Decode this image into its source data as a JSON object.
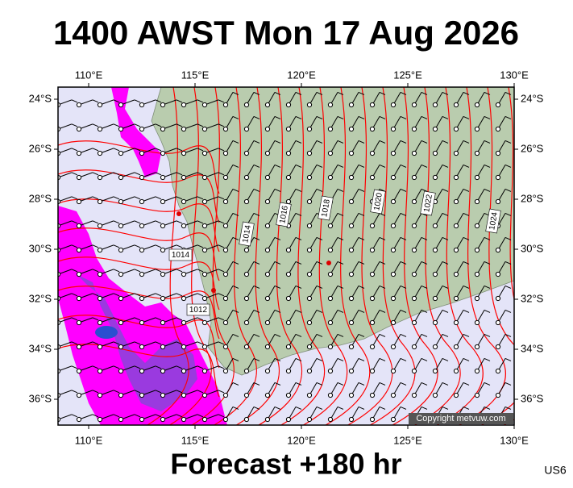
{
  "header": {
    "title": "1400 AWST Mon 17 Aug 2026"
  },
  "map": {
    "lon_ticks": [
      {
        "value": 110,
        "label": "110°E"
      },
      {
        "value": 115,
        "label": "115°E"
      },
      {
        "value": 120,
        "label": "120°E"
      },
      {
        "value": 125,
        "label": "125°E"
      },
      {
        "value": 130,
        "label": "130°E"
      }
    ],
    "lat_ticks": [
      {
        "value": 24,
        "label": "24°S"
      },
      {
        "value": 26,
        "label": "26°S"
      },
      {
        "value": 28,
        "label": "28°S"
      },
      {
        "value": 30,
        "label": "30°S"
      },
      {
        "value": 32,
        "label": "32°S"
      },
      {
        "value": 34,
        "label": "34°S"
      },
      {
        "value": 36,
        "label": "36°S"
      }
    ],
    "isobar_labels": [
      "1014",
      "1012",
      "1014",
      "1016",
      "1018",
      "1020",
      "1022",
      "1024"
    ],
    "copyright": "Copyright metvuw.com"
  },
  "footer": {
    "caption": "Forecast +180 hr",
    "code": "US6"
  }
}
